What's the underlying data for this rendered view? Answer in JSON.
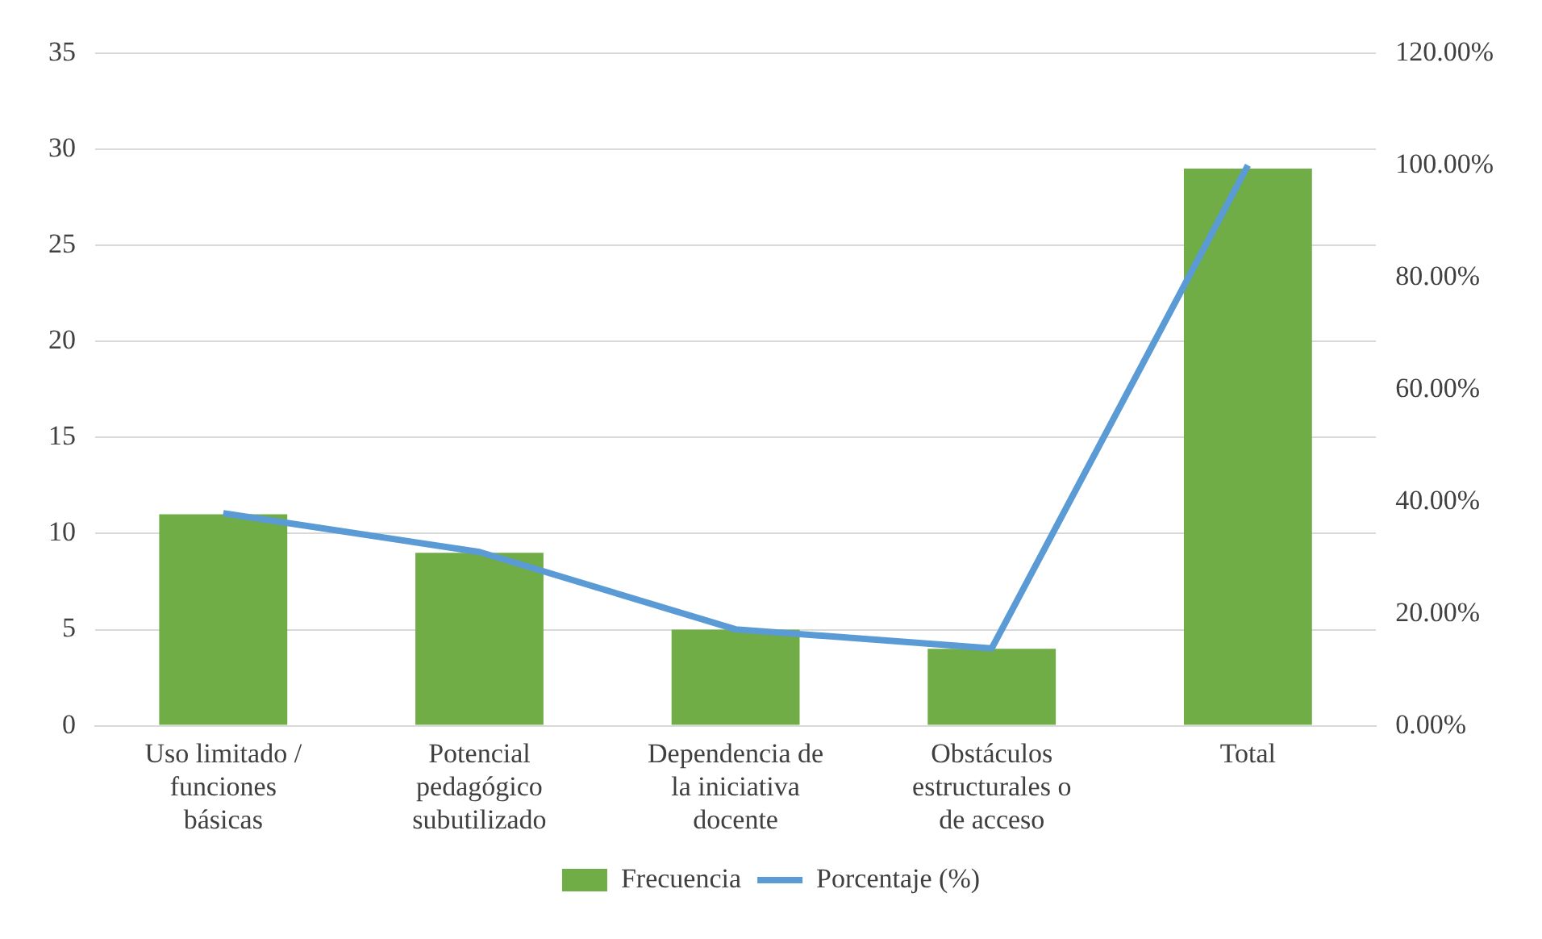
{
  "chart_data": {
    "type": "bar",
    "categories": [
      "Uso limitado / funciones básicas",
      "Potencial pedagógico subutilizado",
      "Dependencia de la iniciativa docente",
      "Obstáculos estructurales o de acceso",
      "Total"
    ],
    "series": [
      {
        "name": "Frecuencia",
        "color": "#70ad47",
        "values": [
          11,
          9,
          5,
          4,
          29
        ]
      },
      {
        "name": "Porcentaje (%)",
        "type": "line",
        "axis": "y2",
        "color": "#5b9bd5",
        "values": [
          37.9,
          31.0,
          17.2,
          13.8,
          100
        ]
      }
    ],
    "ylim": [
      0,
      35
    ],
    "yticks": [
      0,
      5,
      10,
      15,
      20,
      25,
      30,
      35
    ],
    "y2lim": [
      0,
      120
    ],
    "y2ticks": [
      {
        "value": 0,
        "label": "0.00%"
      },
      {
        "value": 20,
        "label": "20.00%"
      },
      {
        "value": 40,
        "label": "40.00%"
      },
      {
        "value": 60,
        "label": "60.00%"
      },
      {
        "value": 80,
        "label": "80.00%"
      },
      {
        "value": 100,
        "label": "100.00%"
      },
      {
        "value": 120,
        "label": "120.00%"
      }
    ],
    "grid": "y",
    "legend": "bottom",
    "marker": "none"
  }
}
